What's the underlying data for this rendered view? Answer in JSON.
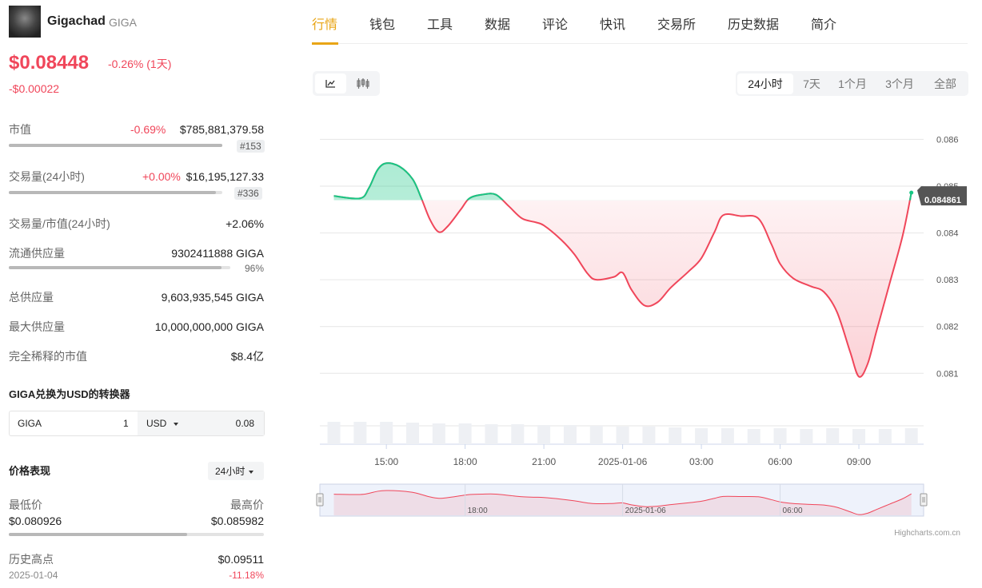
{
  "coin": {
    "name": "Gigachad",
    "symbol": "GIGA",
    "price": "$0.08448",
    "change": "-0.26% (1天)",
    "change_abs": "-$0.00022"
  },
  "stats": [
    {
      "label": "市值",
      "change": "-0.69%",
      "value": "$785,881,379.58",
      "rank": "#153"
    },
    {
      "label": "交易量(24小时)",
      "change": "+0.00%",
      "value": "$16,195,127.33",
      "rank": "#336"
    },
    {
      "label": "交易量/市值(24小时)",
      "value": "+2.06%"
    },
    {
      "label": "流通供应量",
      "value": "9302411888 GIGA",
      "pct": "96%"
    },
    {
      "label": "总供应量",
      "value": "9,603,935,545 GIGA"
    },
    {
      "label": "最大供应量",
      "value": "10,000,000,000 GIGA"
    },
    {
      "label": "完全稀释的市值",
      "value": "$8.4亿"
    }
  ],
  "converter": {
    "title": "GIGA兑换为USD的转换器",
    "from": "GIGA",
    "amount": "1",
    "to": "USD",
    "result": "0.08"
  },
  "performance": {
    "title": "价格表现",
    "period": "24小时",
    "low_label": "最低价",
    "low": "$0.080926",
    "high_label": "最高价",
    "high": "$0.085982",
    "ath_label": "历史高点",
    "ath": "$0.09511",
    "ath_date": "2025-01-04",
    "ath_change": "-11.18%"
  },
  "tabs": [
    "行情",
    "钱包",
    "工具",
    "数据",
    "评论",
    "快讯",
    "交易所",
    "历史数据",
    "简介"
  ],
  "ranges": [
    "24小时",
    "7天",
    "1个月",
    "3个月",
    "全部"
  ],
  "chart_data": {
    "type": "line",
    "up_color": "#16c784",
    "down_color": "#f0465a",
    "baseline": 0.0847,
    "xlim": [
      "2025-01-05T12:28",
      "2025-01-06T11:28"
    ],
    "xticks": [
      {
        "value": "2025-01-05T15:00",
        "label": "15:00"
      },
      {
        "value": "2025-01-05T18:00",
        "label": "18:00"
      },
      {
        "value": "2025-01-05T21:00",
        "label": "21:00"
      },
      {
        "value": "2025-01-06T00:00",
        "label": "2025-01-06"
      },
      {
        "value": "2025-01-06T03:00",
        "label": "03:00"
      },
      {
        "value": "2025-01-06T06:00",
        "label": "06:00"
      },
      {
        "value": "2025-01-06T09:00",
        "label": "09:00"
      }
    ],
    "ylim": [
      0.0808,
      0.0864
    ],
    "yticks": [
      0.081,
      0.082,
      0.083,
      0.084,
      0.085,
      0.086
    ],
    "grid": true,
    "x": [
      "2025-01-05T13:00",
      "2025-01-05T14:00",
      "2025-01-05T14:20",
      "2025-01-05T14:40",
      "2025-01-05T15:00",
      "2025-01-05T15:30",
      "2025-01-05T16:00",
      "2025-01-05T16:20",
      "2025-01-05T16:40",
      "2025-01-05T17:00",
      "2025-01-05T17:20",
      "2025-01-05T17:50",
      "2025-01-05T18:10",
      "2025-01-05T18:40",
      "2025-01-05T19:10",
      "2025-01-05T19:40",
      "2025-01-05T20:10",
      "2025-01-05T20:40",
      "2025-01-05T21:00",
      "2025-01-05T21:40",
      "2025-01-05T22:10",
      "2025-01-05T22:40",
      "2025-01-05T23:00",
      "2025-01-05T23:40",
      "2025-01-06T00:00",
      "2025-01-06T00:20",
      "2025-01-06T00:50",
      "2025-01-06T01:20",
      "2025-01-06T01:50",
      "2025-01-06T02:30",
      "2025-01-06T03:00",
      "2025-01-06T03:30",
      "2025-01-06T03:50",
      "2025-01-06T04:30",
      "2025-01-06T05:10",
      "2025-01-06T05:40",
      "2025-01-06T06:00",
      "2025-01-06T06:30",
      "2025-01-06T07:10",
      "2025-01-06T07:40",
      "2025-01-06T08:10",
      "2025-01-06T08:40",
      "2025-01-06T09:00",
      "2025-01-06T09:20",
      "2025-01-06T09:40",
      "2025-01-06T10:10",
      "2025-01-06T10:40",
      "2025-01-06T11:00"
    ],
    "values": [
      0.08479,
      0.08474,
      0.08496,
      0.08535,
      0.08549,
      0.08542,
      0.08515,
      0.08474,
      0.08428,
      0.08402,
      0.08414,
      0.0845,
      0.08474,
      0.08482,
      0.08482,
      0.08457,
      0.08431,
      0.08423,
      0.08416,
      0.08385,
      0.08354,
      0.08313,
      0.083,
      0.08306,
      0.08315,
      0.08279,
      0.08245,
      0.08252,
      0.08283,
      0.08317,
      0.08346,
      0.08402,
      0.08438,
      0.08436,
      0.08431,
      0.08376,
      0.08334,
      0.08303,
      0.08286,
      0.08274,
      0.08231,
      0.08146,
      0.08093,
      0.0812,
      0.08189,
      0.08291,
      0.08394,
      0.084861
    ],
    "volume": {
      "x": [
        "2025-01-05T13:00",
        "2025-01-05T14:00",
        "2025-01-05T15:00",
        "2025-01-05T16:00",
        "2025-01-05T17:00",
        "2025-01-05T18:00",
        "2025-01-05T19:00",
        "2025-01-05T20:00",
        "2025-01-05T21:00",
        "2025-01-05T22:00",
        "2025-01-05T23:00",
        "2025-01-06T00:00",
        "2025-01-06T01:00",
        "2025-01-06T02:00",
        "2025-01-06T03:00",
        "2025-01-06T04:00",
        "2025-01-06T05:00",
        "2025-01-06T06:00",
        "2025-01-06T07:00",
        "2025-01-06T08:00",
        "2025-01-06T09:00",
        "2025-01-06T10:00",
        "2025-01-06T11:00"
      ],
      "values": [
        28,
        28,
        28,
        27,
        26,
        26,
        25,
        25,
        24,
        24,
        23,
        22,
        22,
        21,
        20,
        20,
        19,
        20,
        19,
        20,
        19,
        19,
        20
      ]
    },
    "navigator": {
      "xticks": [
        {
          "value": "2025-01-05T18:00",
          "label": "18:00"
        },
        {
          "value": "2025-01-06T00:00",
          "label": "2025-01-06"
        },
        {
          "value": "2025-01-06T06:00",
          "label": "06:00"
        }
      ]
    }
  },
  "credit": "Highcharts.com.cn"
}
